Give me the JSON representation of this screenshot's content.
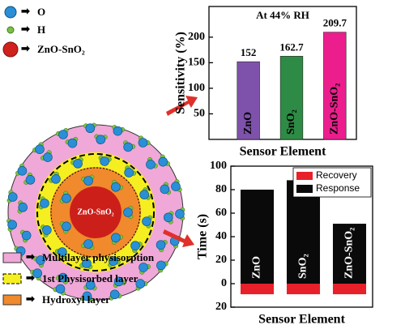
{
  "diagram": {
    "legend_top": [
      "O",
      "H",
      "ZnO-SnO₂"
    ],
    "core_label": "ZnO-SnO₂",
    "legend_bottom": [
      "Multilayer physisorption",
      "1st Physisorbed layer",
      "Hydroxyl layer"
    ]
  },
  "chart_data": [
    {
      "type": "bar",
      "ylabel": "Sensitivity (%)",
      "xlabel": "Sensor Element",
      "annotation": "At 44% RH",
      "categories": [
        "ZnO",
        "SnO₂",
        "ZnO-SnO₂"
      ],
      "values": [
        152,
        162.7,
        209.7
      ],
      "colors": [
        "#7e52ab",
        "#2e8b45",
        "#ec1e8e"
      ],
      "ylim": [
        0,
        260
      ],
      "yticks": [
        50,
        100,
        150,
        200
      ]
    },
    {
      "type": "stacked-bar",
      "ylabel": "Time (s)",
      "xlabel": "Sensor Element",
      "categories": [
        "ZnO",
        "SnO₂",
        "ZnO-SnO₂"
      ],
      "series": [
        {
          "name": "Recovery",
          "color": "#e8202a",
          "values": [
            -9,
            -9,
            -9
          ]
        },
        {
          "name": "Response",
          "color": "#0a0a0a",
          "values": [
            80,
            88,
            51
          ]
        }
      ],
      "ylim": [
        -20,
        100
      ],
      "yticks": [
        {
          "value": -20,
          "label": "20"
        },
        0,
        20,
        40,
        60,
        80,
        100
      ],
      "legend": "top-right"
    }
  ]
}
